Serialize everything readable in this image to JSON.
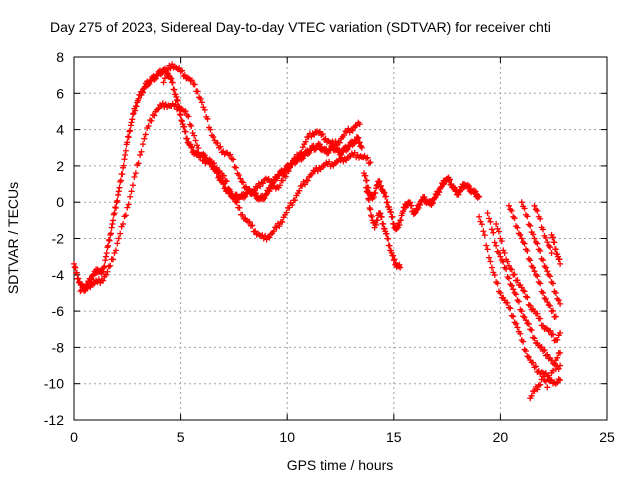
{
  "chart_data": {
    "type": "scatter",
    "title": "Day 275 of 2023, Sidereal Day-to-day VTEC variation (SDTVAR) for receiver chti",
    "xlabel": "GPS time / hours",
    "ylabel": "SDTVAR / TECUs",
    "xlim": [
      0,
      25
    ],
    "ylim": [
      -12,
      8
    ],
    "xticks": [
      0,
      5,
      10,
      15,
      20,
      25
    ],
    "yticks": [
      -12,
      -10,
      -8,
      -6,
      -4,
      -2,
      0,
      2,
      4,
      6,
      8
    ],
    "xtick_labels": [
      "0",
      "5",
      "10",
      "15",
      "20",
      "25"
    ],
    "ytick_labels": [
      "-12",
      "-10",
      "-8",
      "-6",
      "-4",
      "-2",
      "0",
      "2",
      "4",
      "6",
      "8"
    ],
    "grid": true,
    "marker": "+",
    "color": "#ff0000",
    "series": [
      {
        "name": "main",
        "x": [
          0.0,
          0.1,
          0.2,
          0.3,
          0.4,
          0.5,
          0.6,
          0.7,
          0.8,
          0.9,
          1.0,
          1.1,
          1.2,
          1.3,
          1.4,
          1.5,
          1.6,
          1.7,
          1.8,
          1.9,
          2.0,
          2.1,
          2.2,
          2.3,
          2.4,
          2.5,
          2.6,
          2.7,
          2.8,
          2.9,
          3.0,
          3.1,
          3.2,
          3.3,
          3.4,
          3.5,
          3.6,
          3.7,
          3.8,
          3.9,
          4.0,
          4.1,
          4.2,
          4.3,
          4.4,
          4.5,
          4.6,
          4.7,
          4.8,
          4.9,
          5.0,
          5.1,
          5.2,
          5.3,
          5.4,
          5.5,
          5.6,
          5.7,
          5.8,
          5.9,
          6.0,
          6.1,
          6.2,
          6.3,
          6.4,
          6.5,
          6.6,
          6.7,
          6.8,
          6.9,
          7.0,
          7.1,
          7.2,
          7.3,
          7.4,
          7.5,
          7.6,
          7.7,
          7.8,
          7.9,
          8.0,
          8.1,
          8.2,
          8.3,
          8.4,
          8.5,
          8.6,
          8.7,
          8.8,
          8.9,
          9.0,
          9.1,
          9.2,
          9.3,
          9.4,
          9.5,
          9.6,
          9.7,
          9.8,
          9.9,
          10.0,
          10.1,
          10.2,
          10.3,
          10.4,
          10.5,
          10.6,
          10.7,
          10.8,
          10.9,
          11.0,
          11.1,
          11.2,
          11.3,
          11.4,
          11.5,
          11.6,
          11.7,
          11.8,
          11.9,
          12.0,
          12.1,
          12.2,
          12.3,
          12.4,
          12.5,
          12.6,
          12.7,
          12.8,
          12.9,
          13.0,
          13.1,
          13.2,
          13.3,
          13.4,
          13.5
        ],
        "y": [
          -3.4,
          -3.9,
          -4.2,
          -4.5,
          -4.7,
          -4.8,
          -4.6,
          -4.4,
          -4.2,
          -4.0,
          -3.9,
          -3.7,
          -3.8,
          -3.9,
          -3.6,
          -3.0,
          -2.4,
          -1.8,
          -1.2,
          -0.6,
          0.0,
          0.6,
          1.2,
          1.9,
          2.6,
          3.3,
          3.9,
          4.4,
          4.9,
          5.3,
          5.6,
          5.9,
          6.1,
          6.3,
          6.5,
          6.6,
          6.7,
          6.8,
          6.9,
          7.0,
          7.1,
          7.2,
          7.3,
          7.2,
          7.1,
          6.9,
          6.6,
          6.2,
          5.8,
          5.3,
          4.8,
          4.3,
          3.9,
          3.5,
          3.2,
          3.0,
          2.8,
          2.7,
          2.6,
          2.6,
          2.6,
          2.5,
          2.4,
          2.3,
          2.2,
          2.0,
          1.8,
          1.6,
          1.4,
          1.2,
          1.0,
          0.8,
          0.6,
          0.5,
          0.4,
          0.3,
          0.3,
          0.3,
          0.3,
          0.3,
          0.4,
          0.5,
          0.6,
          0.6,
          0.5,
          0.4,
          0.3,
          0.2,
          0.2,
          0.3,
          0.4,
          0.6,
          0.8,
          1.0,
          1.2,
          1.4,
          1.5,
          1.6,
          1.7,
          1.8,
          1.9,
          2.0,
          2.1,
          2.2,
          2.3,
          2.4,
          2.4,
          2.5,
          2.6,
          2.7,
          2.8,
          2.9,
          3.0,
          3.0,
          3.1,
          3.1,
          3.0,
          2.9,
          2.8,
          2.8,
          2.9,
          3.0,
          3.0,
          2.9,
          2.8,
          2.7,
          2.8,
          2.9,
          3.0,
          3.1,
          3.2,
          3.3,
          3.4,
          3.5,
          3.3,
          3.0
        ]
      },
      {
        "name": "lower",
        "x": [
          0.3,
          0.5,
          0.7,
          0.9,
          1.1,
          1.3,
          1.5,
          1.7,
          1.9,
          2.1,
          2.3,
          2.5,
          2.7,
          2.9,
          3.1,
          3.3,
          3.5,
          3.7,
          3.9,
          4.1,
          4.3,
          4.5,
          4.7,
          4.9,
          5.1,
          5.3,
          5.5,
          5.7,
          5.9,
          6.1,
          6.3,
          6.5,
          6.7,
          6.9,
          7.1,
          7.3,
          7.5,
          7.7,
          7.9,
          8.1,
          8.3,
          8.5,
          8.7,
          8.9,
          9.1,
          9.3,
          9.5,
          9.7,
          9.9,
          10.1,
          10.3,
          10.5,
          10.7,
          10.9,
          11.1,
          11.3,
          11.5,
          11.7,
          11.9,
          12.1,
          12.3,
          12.5,
          12.7,
          12.9,
          13.1,
          13.3,
          13.5,
          13.7,
          13.9
        ],
        "y": [
          -4.9,
          -4.7,
          -4.6,
          -4.5,
          -4.4,
          -4.3,
          -4.0,
          -3.5,
          -2.8,
          -2.0,
          -1.2,
          -0.3,
          0.6,
          1.6,
          2.6,
          3.5,
          4.2,
          4.8,
          5.1,
          5.3,
          5.4,
          5.3,
          5.3,
          5.2,
          5.1,
          4.8,
          4.2,
          3.4,
          2.6,
          2.3,
          2.2,
          2.1,
          1.9,
          1.6,
          1.2,
          0.7,
          0.2,
          -0.3,
          -0.7,
          -1.0,
          -1.3,
          -1.6,
          -1.8,
          -2.0,
          -1.9,
          -1.7,
          -1.4,
          -1.1,
          -0.7,
          -0.3,
          0.1,
          0.5,
          0.9,
          1.2,
          1.5,
          1.7,
          1.9,
          2.0,
          2.1,
          2.1,
          2.2,
          2.3,
          2.4,
          2.5,
          2.6,
          2.6,
          2.5,
          2.4,
          2.2
        ]
      },
      {
        "name": "upper",
        "x": [
          4.2,
          4.4,
          4.6,
          4.8,
          5.0,
          5.2,
          5.4,
          5.6,
          5.8,
          6.0,
          6.2,
          6.4,
          6.6,
          6.8,
          7.0,
          7.2,
          7.4,
          7.6,
          7.8,
          8.0,
          8.2,
          8.4,
          8.6,
          8.8,
          9.0,
          9.2,
          9.4,
          9.6,
          9.8,
          10.0,
          10.2,
          10.4,
          10.6,
          10.8,
          11.0,
          11.2,
          11.4,
          11.6,
          11.8,
          12.0,
          12.2,
          12.4,
          12.6,
          12.8,
          13.0,
          13.2,
          13.4
        ],
        "y": [
          6.6,
          7.3,
          7.6,
          7.4,
          7.2,
          7.0,
          6.8,
          6.5,
          6.1,
          5.5,
          4.7,
          4.0,
          3.4,
          3.0,
          2.8,
          2.7,
          2.4,
          1.9,
          1.3,
          0.8,
          0.6,
          0.6,
          0.8,
          1.1,
          1.3,
          1.1,
          0.9,
          0.8,
          1.2,
          1.7,
          2.1,
          2.4,
          2.7,
          3.2,
          3.6,
          3.8,
          3.9,
          3.7,
          3.5,
          3.3,
          3.2,
          3.3,
          3.6,
          3.9,
          4.0,
          4.2,
          4.3
        ]
      },
      {
        "name": "loop-right",
        "x": [
          13.6,
          13.7,
          13.8,
          13.9,
          14.0,
          14.1,
          14.2,
          14.3,
          14.4,
          14.5,
          14.6,
          14.7,
          14.8,
          14.9,
          15.0,
          15.1,
          15.2,
          15.3,
          15.4,
          15.5,
          15.6,
          15.7,
          15.8,
          15.9,
          16.0,
          16.1,
          16.2,
          16.3,
          16.4,
          16.5,
          16.6,
          16.7,
          16.8,
          16.9,
          17.0,
          17.1,
          17.2,
          17.3,
          17.4,
          17.5,
          17.6,
          17.7,
          17.8,
          17.9,
          18.0,
          18.1,
          18.2,
          18.3,
          18.4,
          18.5,
          18.6,
          18.7,
          18.8,
          18.9,
          19.0
        ],
        "y": [
          1.6,
          1.2,
          0.8,
          0.4,
          0.2,
          0.5,
          0.9,
          1.1,
          0.9,
          0.6,
          0.3,
          0.0,
          -0.4,
          -0.8,
          -1.2,
          -1.5,
          -1.4,
          -1.0,
          -0.6,
          -0.3,
          -0.1,
          0.0,
          -0.2,
          -0.5,
          -0.6,
          -0.4,
          -0.1,
          0.1,
          0.2,
          0.1,
          0.0,
          -0.1,
          0.0,
          0.2,
          0.4,
          0.6,
          0.8,
          1.0,
          1.2,
          1.3,
          1.2,
          1.0,
          0.8,
          0.6,
          0.5,
          0.6,
          0.8,
          1.0,
          0.9,
          0.8,
          0.7,
          0.6,
          0.5,
          0.4,
          0.3
        ]
      },
      {
        "name": "drop-left",
        "x": [
          13.7,
          13.8,
          13.9,
          14.0,
          14.1,
          14.2,
          14.3,
          14.4,
          14.5,
          14.6,
          14.7,
          14.8,
          14.9,
          15.0,
          15.1,
          15.2,
          15.3
        ],
        "y": [
          0.8,
          0.2,
          -0.4,
          -1.0,
          -1.4,
          -1.0,
          -0.6,
          -0.8,
          -1.2,
          -1.6,
          -2.0,
          -2.4,
          -2.8,
          -3.2,
          -3.4,
          -3.5,
          -3.6
        ]
      },
      {
        "name": "branch-a",
        "x": [
          19.0,
          19.2,
          19.4,
          19.6,
          19.8,
          20.0,
          20.2,
          20.4,
          20.6,
          20.8,
          21.0,
          21.2,
          21.4,
          21.6,
          21.8,
          22.0,
          22.2,
          22.4,
          22.6,
          22.8
        ],
        "y": [
          -0.8,
          -1.6,
          -2.6,
          -3.6,
          -4.4,
          -5.0,
          -5.4,
          -5.8,
          -6.3,
          -6.9,
          -7.6,
          -8.2,
          -8.7,
          -9.1,
          -9.3,
          -9.4,
          -9.6,
          -9.8,
          -10.0,
          -9.8
        ]
      },
      {
        "name": "branch-b",
        "x": [
          19.4,
          19.6,
          19.8,
          20.0,
          20.2,
          20.4,
          20.6,
          20.8,
          21.0,
          21.2,
          21.4,
          21.6,
          21.8,
          22.0,
          22.2,
          22.4,
          22.6,
          22.8
        ],
        "y": [
          -0.6,
          -1.5,
          -2.4,
          -3.0,
          -3.6,
          -4.2,
          -4.8,
          -5.4,
          -6.0,
          -6.5,
          -7.0,
          -7.5,
          -7.9,
          -8.2,
          -8.4,
          -8.7,
          -9.2,
          -9.0
        ]
      },
      {
        "name": "branch-c",
        "x": [
          19.8,
          20.0,
          20.2,
          20.4,
          20.6,
          20.8,
          21.0,
          21.2,
          21.4,
          21.6,
          21.8,
          22.0,
          22.2,
          22.4,
          22.6,
          22.8
        ],
        "y": [
          -1.2,
          -2.0,
          -2.8,
          -3.5,
          -4.0,
          -4.3,
          -4.7,
          -5.2,
          -5.7,
          -6.0,
          -6.4,
          -6.8,
          -7.0,
          -7.3,
          -7.6,
          -7.2
        ]
      },
      {
        "name": "streak-1",
        "x": [
          20.4,
          20.6,
          20.8,
          21.0,
          21.2,
          21.4,
          21.6,
          21.8,
          22.0,
          22.2,
          22.4,
          22.6
        ],
        "y": [
          -0.2,
          -0.8,
          -1.4,
          -2.0,
          -2.6,
          -3.2,
          -3.8,
          -4.4,
          -5.0,
          -5.5,
          -6.0,
          -6.3
        ]
      },
      {
        "name": "streak-2",
        "x": [
          21.0,
          21.2,
          21.4,
          21.6,
          21.8,
          22.0,
          22.2,
          22.4,
          22.6,
          22.8
        ],
        "y": [
          0.0,
          -0.7,
          -1.3,
          -2.0,
          -2.6,
          -3.2,
          -3.8,
          -4.4,
          -5.0,
          -5.6
        ]
      },
      {
        "name": "streak-3",
        "x": [
          21.6,
          21.8,
          22.0,
          22.2,
          22.4
        ],
        "y": [
          -0.2,
          -0.8,
          -1.5,
          -2.2,
          -2.8
        ]
      },
      {
        "name": "streak-4",
        "x": [
          22.4,
          22.5,
          22.6,
          22.7,
          22.8
        ],
        "y": [
          -1.8,
          -2.2,
          -2.6,
          -3.0,
          -3.4
        ]
      },
      {
        "name": "tail",
        "x": [
          21.4,
          21.6,
          21.8,
          22.0,
          22.2,
          22.4,
          22.6,
          22.8
        ],
        "y": [
          -10.8,
          -10.4,
          -10.1,
          -9.6,
          -10.2,
          -9.4,
          -8.7,
          -8.3
        ]
      }
    ]
  }
}
